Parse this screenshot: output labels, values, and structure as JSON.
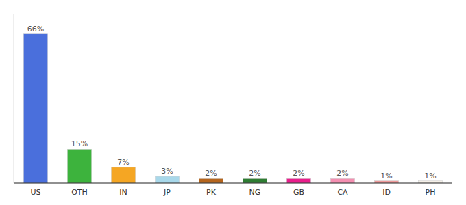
{
  "chart_data": {
    "type": "bar",
    "categories": [
      "US",
      "OTH",
      "IN",
      "JP",
      "PK",
      "NG",
      "GB",
      "CA",
      "ID",
      "PH"
    ],
    "values": [
      66,
      15,
      7,
      3,
      2,
      2,
      2,
      2,
      1,
      1
    ],
    "value_labels": [
      "66%",
      "15%",
      "7%",
      "3%",
      "2%",
      "2%",
      "2%",
      "2%",
      "1%",
      "1%"
    ],
    "data_labels": true,
    "colors": [
      "#4a6fdc",
      "#3db33d",
      "#f5a623",
      "#a8d8ea",
      "#b5651d",
      "#2e7d32",
      "#e91e8c",
      "#f48fb1",
      "#ef9a9a",
      "#f5f0e8"
    ],
    "ylim": [
      0,
      75
    ],
    "grid": false,
    "tick_labels": "x"
  }
}
